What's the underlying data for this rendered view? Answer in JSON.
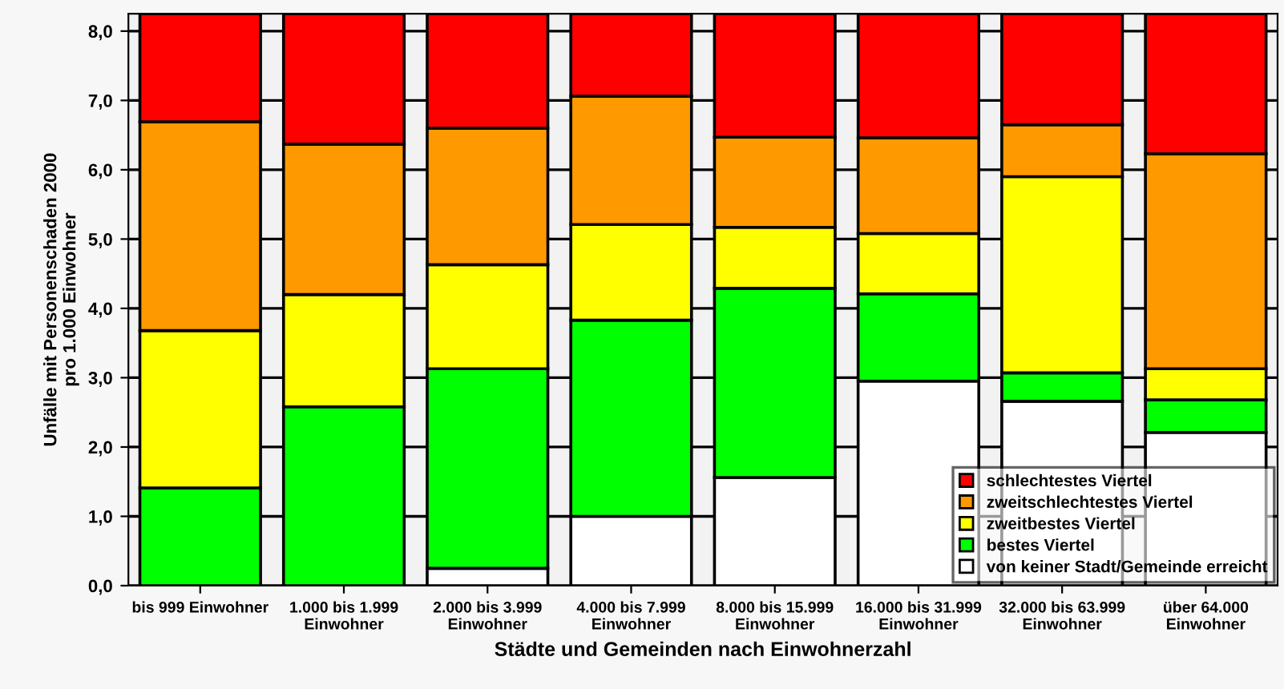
{
  "chart_data": {
    "type": "bar",
    "stacked": true,
    "xlabel": "Städte und Gemeinden nach Einwohnerzahl",
    "ylabel": "Unfälle mit Personenschaden 2000\npro 1.000 Einwohner",
    "categories": [
      "bis 999 Einwohner",
      "1.000 bis 1.999\nEinwohner",
      "2.000 bis 3.999\nEinwohner",
      "4.000 bis 7.999\nEinwohner",
      "8.000 bis 15.999\nEinwohner",
      "16.000 bis 31.999\nEinwohner",
      "32.000 bis 63.999\nEinwohner",
      "über 64.000\nEinwohner"
    ],
    "series": [
      {
        "name": "von keiner Stadt/Gemeinde erreicht",
        "color": "#ffffff",
        "values": [
          0,
          0,
          0.25,
          1.0,
          1.56,
          2.95,
          2.66,
          2.21
        ]
      },
      {
        "name": "bestes Viertel",
        "color": "#00ff00",
        "values": [
          1.41,
          2.58,
          2.88,
          2.83,
          2.73,
          1.26,
          0.41,
          0.47
        ]
      },
      {
        "name": "zweitbestes Viertel",
        "color": "#ffff00",
        "values": [
          2.27,
          1.62,
          1.5,
          1.38,
          0.88,
          0.87,
          2.83,
          0.45
        ]
      },
      {
        "name": "zweitschlechtestes Viertel",
        "color": "#ff9900",
        "values": [
          3.01,
          2.17,
          1.97,
          1.85,
          1.3,
          1.38,
          0.75,
          3.1
        ]
      },
      {
        "name": "schlechtestes Viertel",
        "color": "#ff0000",
        "values": [
          1.56,
          1.88,
          1.65,
          1.19,
          1.78,
          1.79,
          1.6,
          2.02
        ]
      }
    ],
    "ylim": [
      0,
      8.25
    ],
    "yticks": [
      {
        "value": 0,
        "label": "0,0"
      },
      {
        "value": 1,
        "label": "1,0"
      },
      {
        "value": 2,
        "label": "2,0"
      },
      {
        "value": 3,
        "label": "3,0"
      },
      {
        "value": 4,
        "label": "4,0"
      },
      {
        "value": 5,
        "label": "5,0"
      },
      {
        "value": 6,
        "label": "6,0"
      },
      {
        "value": 7,
        "label": "7,0"
      },
      {
        "value": 8,
        "label": "8,0"
      }
    ],
    "grid": "y",
    "legend": "bottom right"
  }
}
